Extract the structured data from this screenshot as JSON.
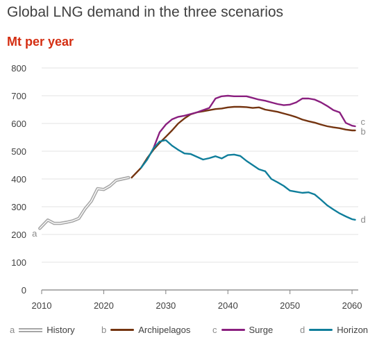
{
  "chart_data": {
    "type": "line",
    "title": "Global LNG demand in the three scenarios",
    "ylabel": "Mt per year",
    "xlim": [
      2010,
      2061
    ],
    "ylim": [
      0,
      800
    ],
    "x_ticks": [
      "2010",
      "2020",
      "2030",
      "2040",
      "2050",
      "2060"
    ],
    "y_ticks": [
      "0",
      "100",
      "200",
      "300",
      "400",
      "500",
      "600",
      "700",
      "800"
    ],
    "grid": true,
    "legend_position": "bottom",
    "series": [
      {
        "name": "History",
        "letter": "a",
        "color": "#a6a6a6",
        "style": "double",
        "x": [
          2009.7,
          2011,
          2012,
          2013,
          2014,
          2015,
          2016,
          2017,
          2018,
          2019,
          2020,
          2021,
          2022,
          2023,
          2024
        ],
        "y": [
          222,
          252,
          240,
          240,
          244,
          249,
          258,
          293,
          320,
          365,
          362,
          375,
          395,
          400,
          405
        ]
      },
      {
        "name": "Archipelagos",
        "letter": "b",
        "color": "#743410",
        "style": "solid",
        "x": [
          2024.5,
          2026,
          2027,
          2028,
          2029,
          2030,
          2031,
          2032,
          2033,
          2034,
          2035,
          2036,
          2037,
          2038,
          2039,
          2040,
          2041,
          2042,
          2043,
          2044,
          2045,
          2046,
          2047,
          2048,
          2049,
          2050,
          2051,
          2052,
          2053,
          2054,
          2055,
          2056,
          2057,
          2058,
          2059,
          2060,
          2060.5
        ],
        "y": [
          405,
          440,
          475,
          505,
          530,
          552,
          575,
          600,
          618,
          633,
          640,
          644,
          648,
          652,
          654,
          658,
          660,
          660,
          659,
          656,
          658,
          650,
          646,
          642,
          636,
          630,
          623,
          614,
          608,
          603,
          596,
          590,
          586,
          583,
          578,
          575,
          575
        ]
      },
      {
        "name": "Surge",
        "letter": "c",
        "color": "#8a1f7f",
        "style": "solid",
        "x": [
          2028,
          2029,
          2030,
          2031,
          2032,
          2033,
          2034,
          2035,
          2036,
          2037,
          2038,
          2039,
          2040,
          2041,
          2042,
          2043,
          2044,
          2045,
          2046,
          2047,
          2048,
          2049,
          2050,
          2051,
          2052,
          2053,
          2054,
          2055,
          2056,
          2057,
          2058,
          2059,
          2060,
          2060.5
        ],
        "y": [
          510,
          568,
          596,
          615,
          624,
          628,
          634,
          640,
          648,
          656,
          690,
          698,
          700,
          698,
          698,
          698,
          692,
          686,
          682,
          676,
          670,
          666,
          668,
          676,
          690,
          690,
          686,
          676,
          663,
          648,
          640,
          602,
          592,
          590
        ]
      },
      {
        "name": "Horizon",
        "letter": "d",
        "color": "#0f7e9b",
        "style": "solid",
        "x": [
          2026,
          2027,
          2028,
          2029,
          2030,
          2031,
          2032,
          2033,
          2034,
          2035,
          2036,
          2037,
          2038,
          2039,
          2040,
          2041,
          2042,
          2043,
          2044,
          2045,
          2046,
          2047,
          2048,
          2049,
          2050,
          2051,
          2052,
          2053,
          2054,
          2055,
          2056,
          2057,
          2058,
          2059,
          2060,
          2060.5
        ],
        "y": [
          440,
          470,
          510,
          535,
          540,
          520,
          505,
          492,
          490,
          480,
          470,
          475,
          482,
          474,
          486,
          488,
          483,
          465,
          450,
          435,
          428,
          400,
          388,
          375,
          358,
          354,
          350,
          352,
          344,
          325,
          305,
          290,
          276,
          265,
          255,
          253
        ]
      }
    ]
  }
}
